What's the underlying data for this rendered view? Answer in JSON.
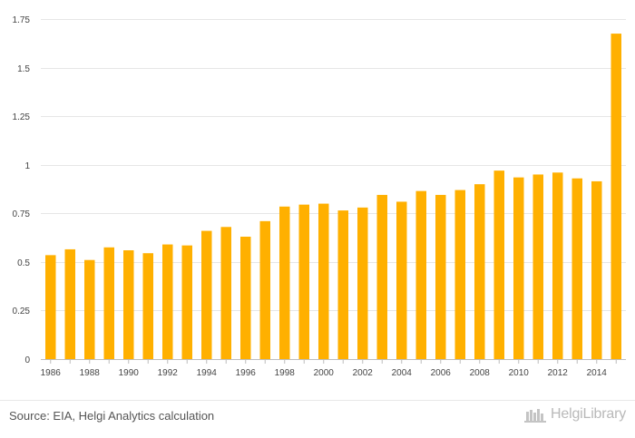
{
  "chart_data": {
    "type": "bar",
    "title": "",
    "xlabel": "",
    "ylabel": "",
    "categories": [
      "1986",
      "1987",
      "1988",
      "1989",
      "1990",
      "1991",
      "1992",
      "1993",
      "1994",
      "1995",
      "1996",
      "1997",
      "1998",
      "1999",
      "2000",
      "2001",
      "2002",
      "2003",
      "2004",
      "2005",
      "2006",
      "2007",
      "2008",
      "2009",
      "2010",
      "2011",
      "2012",
      "2013",
      "2014",
      "2015"
    ],
    "x_tick_labels": [
      "1986",
      "1988",
      "1990",
      "1992",
      "1994",
      "1996",
      "1998",
      "2000",
      "2002",
      "2004",
      "2006",
      "2008",
      "2010",
      "2012",
      "2014"
    ],
    "values": [
      0.535,
      0.565,
      0.51,
      0.575,
      0.56,
      0.545,
      0.59,
      0.585,
      0.66,
      0.68,
      0.63,
      0.71,
      0.785,
      0.795,
      0.8,
      0.765,
      0.78,
      0.845,
      0.81,
      0.865,
      0.845,
      0.87,
      0.9,
      0.97,
      0.935,
      0.95,
      0.96,
      0.93,
      0.915,
      1.675
    ],
    "ylim": [
      0,
      1.75
    ],
    "y_ticks": [
      0,
      0.25,
      0.5,
      0.75,
      1,
      1.25,
      1.5,
      1.75
    ],
    "y_tick_labels": [
      "0",
      "0.25",
      "0.5",
      "0.75",
      "1",
      "1.25",
      "1.5",
      "1.75"
    ],
    "grid": true,
    "bar_color": "#ffb000",
    "grid_color": "#e6e6e6"
  },
  "footer": {
    "source": "Source: EIA, Helgi Analytics calculation",
    "brand": "HelgiLibrary"
  }
}
